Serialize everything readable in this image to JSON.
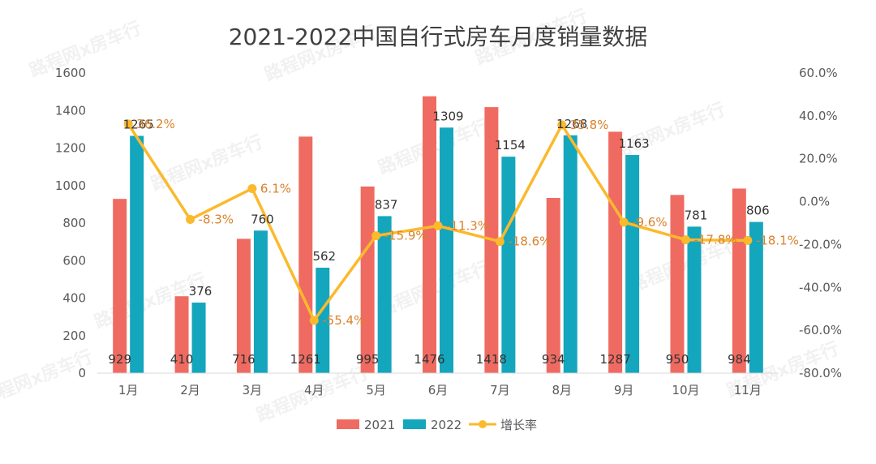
{
  "chart_data": {
    "type": "bar",
    "title": "2021-2022中国自行式房车月度销量数据",
    "categories": [
      "1月",
      "2月",
      "3月",
      "4月",
      "5月",
      "6月",
      "7月",
      "8月",
      "9月",
      "10月",
      "11月"
    ],
    "series": [
      {
        "name": "2021",
        "type": "bar",
        "color": "#ef6b61",
        "values": [
          929,
          410,
          716,
          1261,
          995,
          1476,
          1418,
          934,
          1287,
          950,
          984
        ],
        "labels": [
          "929",
          "410",
          "716",
          "1261",
          "995",
          "1476",
          "1418",
          "934",
          "1287",
          "950",
          "984"
        ]
      },
      {
        "name": "2022",
        "type": "bar",
        "color": "#14a6bd",
        "values": [
          1265,
          376,
          760,
          562,
          837,
          1309,
          1154,
          1268,
          1163,
          781,
          806
        ],
        "labels": [
          "1265",
          "376",
          "760",
          "562",
          "837",
          "1309",
          "1154",
          "1268",
          "1163",
          "781",
          "806"
        ]
      },
      {
        "name": "增长率",
        "type": "line",
        "axis": "right",
        "color": "#fbb92c",
        "values": [
          36.2,
          -8.3,
          6.1,
          -55.4,
          -15.9,
          -11.3,
          -18.6,
          35.8,
          -9.6,
          -17.8,
          -18.1
        ],
        "labels": [
          "36.2%",
          "-8.3%",
          "6.1%",
          "-55.4%",
          "-15.9%",
          "-11.3%",
          "-18.6%",
          "35.8%",
          "-9.6%",
          "-17.8%",
          "-18.1%"
        ]
      }
    ],
    "y_left": {
      "min": 0,
      "max": 1600,
      "ticks": [
        "0",
        "200",
        "400",
        "600",
        "800",
        "1000",
        "1200",
        "1400",
        "1600"
      ]
    },
    "y_right": {
      "min": -80,
      "max": 60,
      "ticks": [
        "-80.0%",
        "-60.0%",
        "-40.0%",
        "-20.0%",
        "0.0%",
        "20.0%",
        "40.0%",
        "60.0%"
      ]
    },
    "legend": [
      "2021",
      "2022",
      "增长率"
    ],
    "legend_position": "bottom",
    "watermark": "路程网x房车行"
  }
}
